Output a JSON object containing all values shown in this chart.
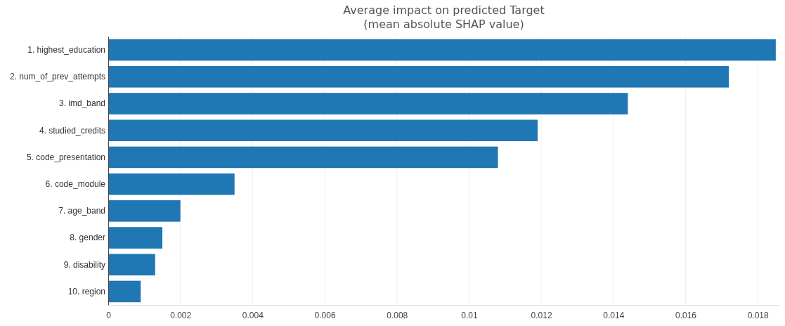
{
  "chart_data": {
    "type": "bar",
    "orientation": "horizontal",
    "title": "Average impact on predicted Target",
    "subtitle": "(mean absolute SHAP value)",
    "categories": [
      "1. highest_education",
      "2. num_of_prev_attempts",
      "3. imd_band",
      "4. studied_credits",
      "5. code_presentation",
      "6. code_module",
      "7. age_band",
      "8. gender",
      "9. disability",
      "10. region"
    ],
    "values": [
      0.0185,
      0.0172,
      0.0144,
      0.0119,
      0.0108,
      0.0035,
      0.002,
      0.0015,
      0.0013,
      0.0009
    ],
    "color": "#1f77b4",
    "xlim": [
      0,
      0.0186
    ],
    "xticks": [
      0,
      0.002,
      0.004,
      0.006,
      0.008,
      0.01,
      0.012,
      0.014,
      0.016,
      0.018
    ],
    "grid": "x"
  }
}
